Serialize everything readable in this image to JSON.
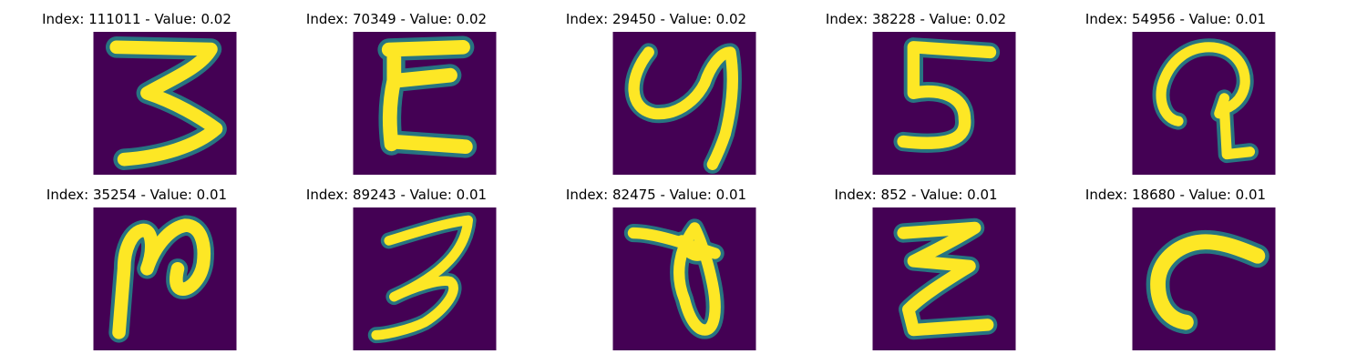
{
  "figure": {
    "background": "#ffffff",
    "colormap": [
      "#440154",
      "#3b528b",
      "#21918c",
      "#5ec962",
      "#fde725"
    ],
    "panels": [
      {
        "title": "Index: 111011 - Value: 0.02",
        "glyph": "3-shaped stroke"
      },
      {
        "title": "Index: 70349 - Value: 0.02",
        "glyph": "E-shaped stroke"
      },
      {
        "title": "Index: 29450 - Value: 0.02",
        "glyph": "y-shaped stroke"
      },
      {
        "title": "Index: 38228 - Value: 0.02",
        "glyph": "5-shaped stroke"
      },
      {
        "title": "Index: 54956 - Value: 0.01",
        "glyph": "looped stroke"
      },
      {
        "title": "Index: 35254 - Value: 0.01",
        "glyph": "N-shaped stroke"
      },
      {
        "title": "Index: 89243 - Value: 0.01",
        "glyph": "3-shaped stroke"
      },
      {
        "title": "Index: 82475 - Value: 0.01",
        "glyph": "looped theta stroke"
      },
      {
        "title": "Index: 852 - Value: 0.01",
        "glyph": "Z-shaped stroke"
      },
      {
        "title": "Index: 18680 - Value: 0.01",
        "glyph": "hook stroke"
      }
    ]
  }
}
